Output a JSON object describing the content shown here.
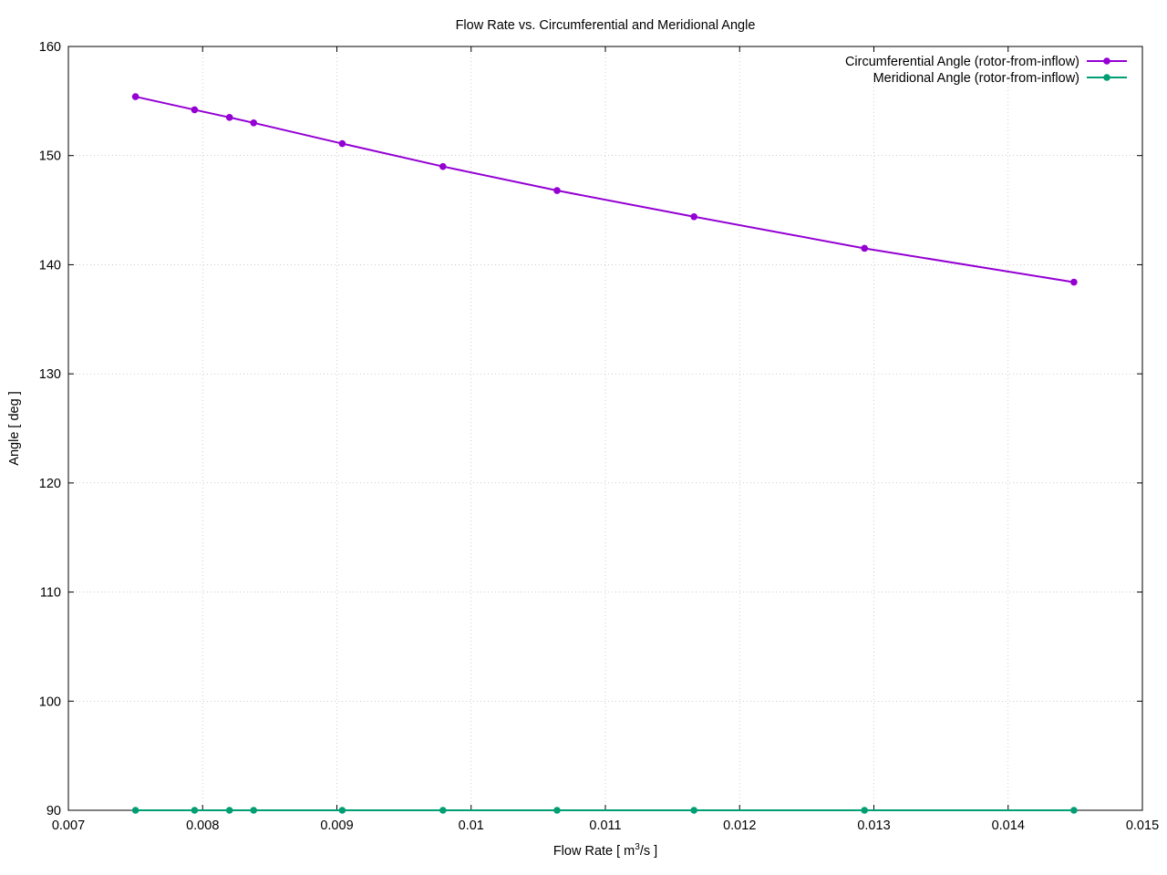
{
  "chart_data": {
    "type": "line",
    "title": "Flow Rate vs. Circumferential and Meridional Angle",
    "xlabel_base": "Flow Rate [ m",
    "xlabel_sup": "3",
    "xlabel_tail": "/s ]",
    "ylabel": "Angle [ deg ]",
    "xlim": [
      0.007,
      0.015
    ],
    "ylim": [
      90,
      160
    ],
    "grid": true,
    "legend_position": "top-right",
    "x_ticks": [
      {
        "value": 0.007,
        "label": "0.007"
      },
      {
        "value": 0.008,
        "label": "0.008"
      },
      {
        "value": 0.009,
        "label": "0.009"
      },
      {
        "value": 0.01,
        "label": "0.01"
      },
      {
        "value": 0.011,
        "label": "0.011"
      },
      {
        "value": 0.012,
        "label": "0.012"
      },
      {
        "value": 0.013,
        "label": "0.013"
      },
      {
        "value": 0.014,
        "label": "0.014"
      },
      {
        "value": 0.015,
        "label": "0.015"
      }
    ],
    "y_ticks": [
      {
        "value": 90,
        "label": "90"
      },
      {
        "value": 100,
        "label": "100"
      },
      {
        "value": 110,
        "label": "110"
      },
      {
        "value": 120,
        "label": "120"
      },
      {
        "value": 130,
        "label": "130"
      },
      {
        "value": 140,
        "label": "140"
      },
      {
        "value": 150,
        "label": "150"
      },
      {
        "value": 160,
        "label": "160"
      }
    ],
    "x": [
      0.0075,
      0.00794,
      0.0082,
      0.00838,
      0.00904,
      0.00979,
      0.01064,
      0.01166,
      0.01293,
      0.01449
    ],
    "series": [
      {
        "name": "Circumferential Angle (rotor-from-inflow)",
        "color": "#9400d3",
        "values": [
          155.4,
          154.2,
          153.5,
          153.0,
          151.1,
          149.0,
          146.8,
          144.4,
          141.5,
          138.4
        ]
      },
      {
        "name": "Meridional Angle (rotor-from-inflow)",
        "color": "#009e73",
        "values": [
          90,
          90,
          90,
          90,
          90,
          90,
          90,
          90,
          90,
          90
        ]
      }
    ]
  }
}
